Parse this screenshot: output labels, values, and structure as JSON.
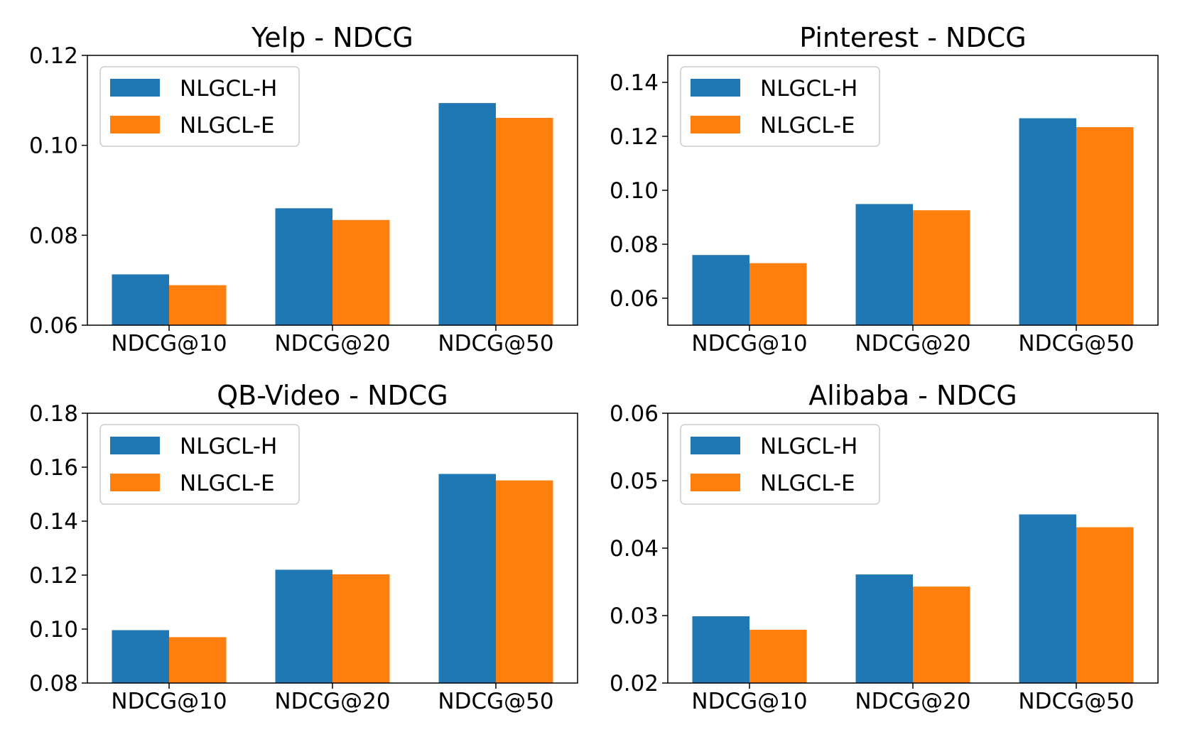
{
  "colors": {
    "series_h": "#1f77b4",
    "series_e": "#ff7f0e",
    "axis": "#000000",
    "legend_border": "#cccccc"
  },
  "chart_data": [
    {
      "type": "bar",
      "title": "Yelp - NDCG",
      "categories": [
        "NDCG@10",
        "NDCG@20",
        "NDCG@50"
      ],
      "series": [
        {
          "name": "NLGCL-H",
          "values": [
            0.0713,
            0.086,
            0.1094
          ]
        },
        {
          "name": "NLGCL-E",
          "values": [
            0.0689,
            0.0834,
            0.1061
          ]
        }
      ],
      "ylim": [
        0.06,
        0.12
      ],
      "yticks": [
        "0.06",
        "0.08",
        "0.10",
        "0.12"
      ],
      "xlabel": "",
      "ylabel": "",
      "legend": "top-left"
    },
    {
      "type": "bar",
      "title": "Pinterest - NDCG",
      "categories": [
        "NDCG@10",
        "NDCG@20",
        "NDCG@50"
      ],
      "series": [
        {
          "name": "NLGCL-H",
          "values": [
            0.076,
            0.0949,
            0.1267
          ]
        },
        {
          "name": "NLGCL-E",
          "values": [
            0.073,
            0.0926,
            0.1234
          ]
        }
      ],
      "ylim": [
        0.05,
        0.15
      ],
      "yticks": [
        "0.06",
        "0.08",
        "0.10",
        "0.12",
        "0.14"
      ],
      "xlabel": "",
      "ylabel": "",
      "legend": "top-left"
    },
    {
      "type": "bar",
      "title": "QB-Video - NDCG",
      "categories": [
        "NDCG@10",
        "NDCG@20",
        "NDCG@50"
      ],
      "series": [
        {
          "name": "NLGCL-H",
          "values": [
            0.0996,
            0.122,
            0.1575
          ]
        },
        {
          "name": "NLGCL-E",
          "values": [
            0.097,
            0.1203,
            0.1551
          ]
        }
      ],
      "ylim": [
        0.08,
        0.18
      ],
      "yticks": [
        "0.08",
        "0.10",
        "0.12",
        "0.14",
        "0.16",
        "0.18"
      ],
      "xlabel": "",
      "ylabel": "",
      "legend": "top-left"
    },
    {
      "type": "bar",
      "title": "Alibaba - NDCG",
      "categories": [
        "NDCG@10",
        "NDCG@20",
        "NDCG@50"
      ],
      "series": [
        {
          "name": "NLGCL-H",
          "values": [
            0.0299,
            0.0361,
            0.045
          ]
        },
        {
          "name": "NLGCL-E",
          "values": [
            0.0279,
            0.0343,
            0.0431
          ]
        }
      ],
      "ylim": [
        0.02,
        0.06
      ],
      "yticks": [
        "0.02",
        "0.03",
        "0.04",
        "0.05",
        "0.06"
      ],
      "xlabel": "",
      "ylabel": "",
      "legend": "top-left"
    }
  ]
}
